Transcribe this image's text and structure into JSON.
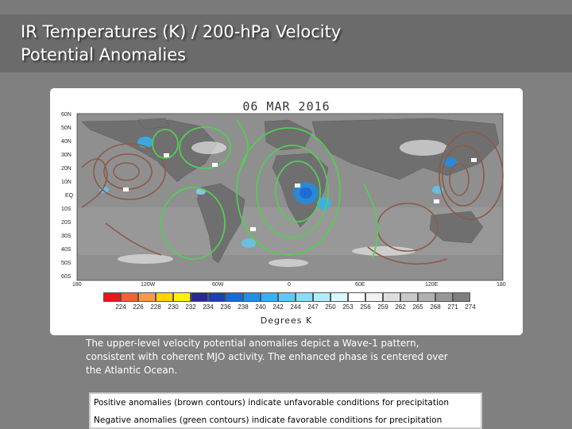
{
  "slide": {
    "title_line1": "IR Temperatures (K) / 200-hPa Velocity",
    "title_line2": "Potential Anomalies"
  },
  "map": {
    "date": "06 MAR 2016",
    "latitude_labels": [
      "60N",
      "50N",
      "40N",
      "30N",
      "20N",
      "10N",
      "EQ",
      "10S",
      "20S",
      "30S",
      "40S",
      "50S",
      "60S"
    ],
    "longitude_labels": [
      "180",
      "120W",
      "60W",
      "0",
      "60E",
      "120E",
      "180"
    ],
    "colorbar_values": [
      "224",
      "226",
      "228",
      "230",
      "232",
      "234",
      "236",
      "238",
      "240",
      "242",
      "244",
      "247",
      "250",
      "253",
      "256",
      "259",
      "262",
      "265",
      "268",
      "271",
      "274"
    ],
    "colorbar_colors": [
      "#e8151b",
      "#f5603a",
      "#f59a48",
      "#ffd400",
      "#fff200",
      "#2a2a8a",
      "#1e3fb4",
      "#1b68d8",
      "#1e8fea",
      "#33b3f3",
      "#5ec9f5",
      "#8adcf7",
      "#b2ecfa",
      "#d9f7fd",
      "#ffffff",
      "#f2f2f2",
      "#dedede",
      "#c8c8c8",
      "#b0b0b0",
      "#979797",
      "#7e7e7e"
    ],
    "units": "Degrees K",
    "contour_colors": {
      "positive": "#8b5a48",
      "negative": "#55cc55"
    }
  },
  "caption": {
    "line1": "The upper-level velocity potential anomalies depict a Wave-1 pattern,",
    "line2": "consistent with coherent MJO activity. The enhanced phase is centered over",
    "line3": "the Atlantic Ocean."
  },
  "legend_note": {
    "positive": "Positive anomalies (brown contours) indicate unfavorable conditions for precipitation",
    "negative": "Negative anomalies (green contours) indicate favorable conditions for precipitation"
  }
}
